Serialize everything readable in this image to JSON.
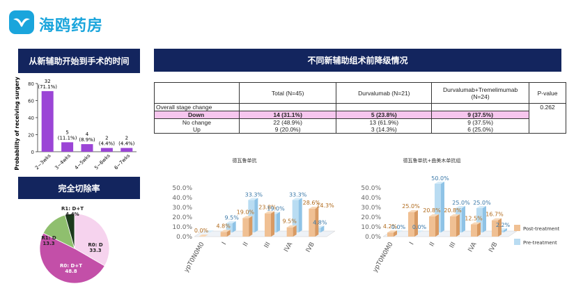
{
  "logo": {
    "text": "海鸥药房"
  },
  "banners": {
    "time": "从新辅助开始到手术的时间",
    "stage": "不同新辅助组术前降级情况",
    "resection": "完全切除率"
  },
  "time_chart": {
    "ylabel": "Probability of receiving surgery (%)",
    "yticks": [
      "0",
      "20",
      "40",
      "60",
      "80"
    ]
  },
  "table": {
    "headers": [
      "",
      "Total (N=45)",
      "Durvalumab (N=21)",
      "Durvalumab+Tremelimumab (N=24)",
      "P-value"
    ],
    "section_label": "Overall stage change",
    "p_value": "0.262",
    "rows": [
      {
        "label": "Down",
        "total": "14 (31.1%)",
        "durva": "5 (23.8%)",
        "combo": "9 (37.5%)"
      },
      {
        "label": "No change",
        "total": "22 (48.9%)",
        "durva": "13 (61.9%)",
        "combo": "9 (37.5%)"
      },
      {
        "label": "Up",
        "total": "9 (20.0%)",
        "durva": "3 (14.3%)",
        "combo": "6 (25.0%)"
      }
    ]
  },
  "legend": {
    "post": "Post-treatment",
    "pre": "Pre-treatment"
  },
  "colors": {
    "navy": "#13255e",
    "purple": "#9b45d6",
    "post": "#e8b07a",
    "pre": "#a9d4ee",
    "pink": "#f6c6ee"
  },
  "chart_data": [
    {
      "type": "bar",
      "categories": [
        "2~3wks",
        "3~4wks",
        "4~5wks",
        "5~6wks",
        "6~7wks"
      ],
      "values": [
        32,
        5,
        4,
        2,
        2
      ],
      "percents": [
        "(71.1%)",
        "(11.1%)",
        "(8.9%)",
        "(4.4%)",
        "(4.4%)"
      ],
      "ylabel": "Probability of receiving surgery (%)",
      "ylim": [
        0,
        80
      ]
    },
    {
      "type": "pie",
      "labels": [
        "R0: D",
        "R0: D+T",
        "R1: D",
        "R1: D+T"
      ],
      "values": [
        33.3,
        48.8,
        13.3,
        4.4
      ],
      "value_labels": [
        "33.3",
        "48.8",
        "13.3",
        "4.4%"
      ],
      "colors": [
        "#f6d3ee",
        "#c34fa8",
        "#8fbf6e",
        "#1c3a1c"
      ]
    },
    {
      "type": "bar",
      "title": "德瓦鲁单抗",
      "categories": [
        "ypT0N0M0",
        "I",
        "II",
        "III",
        "IVA",
        "IVB"
      ],
      "series": [
        {
          "name": "Post-treatment",
          "values": [
            0.0,
            4.8,
            19.0,
            23.8,
            9.5,
            28.6
          ],
          "labels": [
            "0.0%",
            "4.8%",
            "19.0%",
            "23.8%",
            "9.5%",
            "28.6%"
          ]
        },
        {
          "name": "Pre-treatment",
          "values": [
            0.0,
            9.5,
            33.3,
            19.0,
            33.3,
            4.8
          ],
          "labels": [
            "",
            "9.5%",
            "33.3%",
            "19.0%",
            "33.3%",
            "4.8%"
          ]
        }
      ],
      "extra_labels": [
        "14.3%"
      ],
      "yticks": [
        "0.0%",
        "10.0%",
        "20.0%",
        "30.0%",
        "40.0%",
        "50.0%"
      ],
      "ylim": [
        0,
        50
      ]
    },
    {
      "type": "bar",
      "title": "德瓦鲁单抗+曲美木单抗组",
      "categories": [
        "ypT0N0M0",
        "I",
        "II",
        "III",
        "IVA",
        "IVB"
      ],
      "series": [
        {
          "name": "Post-treatment",
          "values": [
            4.2,
            25.0,
            20.8,
            20.8,
            12.5,
            16.7
          ],
          "labels": [
            "4.2%",
            "25.0%",
            "20.8%",
            "20.8%",
            "12.5%",
            "16.7%"
          ]
        },
        {
          "name": "Pre-treatment",
          "values": [
            0.0,
            0.0,
            50.0,
            25.0,
            25.0,
            2.2
          ],
          "labels": [
            "0.0%",
            "0.0%",
            "50.0%",
            "25.0%",
            "25.0%",
            "2.2%"
          ]
        }
      ],
      "yticks": [
        "0.0%",
        "10.0%",
        "20.0%",
        "30.0%",
        "40.0%",
        "50.0%"
      ],
      "ylim": [
        0,
        50
      ]
    }
  ]
}
